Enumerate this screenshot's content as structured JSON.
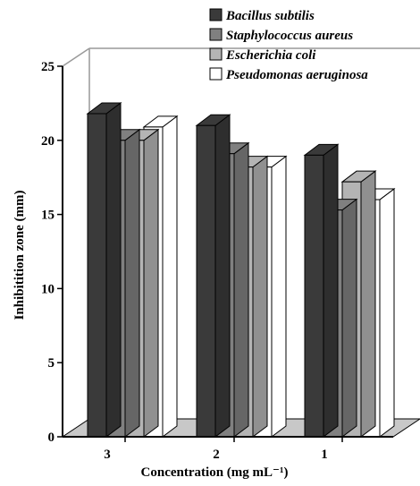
{
  "chart_data": {
    "type": "bar",
    "style": "3d-clustered",
    "categories": [
      "3",
      "2",
      "1"
    ],
    "series": [
      {
        "name": "Bacillus subtilis",
        "values": [
          21.8,
          21.0,
          19.0
        ],
        "color": "#3a3a3a"
      },
      {
        "name": "Staphylococcus aureus",
        "values": [
          20.0,
          19.1,
          15.3
        ],
        "color": "#808080"
      },
      {
        "name": "Escherichia coli",
        "values": [
          20.0,
          18.2,
          17.2
        ],
        "color": "#b4b4b4"
      },
      {
        "name": "Pseudomonas aeruginosa",
        "values": [
          20.9,
          18.2,
          16.0
        ],
        "color": "#ffffff"
      }
    ],
    "xlabel": "Concentration (mg mL⁻¹)",
    "ylabel": "Inhibitition zone (mm)",
    "ylim": [
      0,
      25
    ],
    "yticks": [
      "0",
      "5",
      "10",
      "15",
      "20",
      "25"
    ],
    "legend_position": "top-right",
    "floor_color": "#c8c8c8",
    "grid": false
  }
}
